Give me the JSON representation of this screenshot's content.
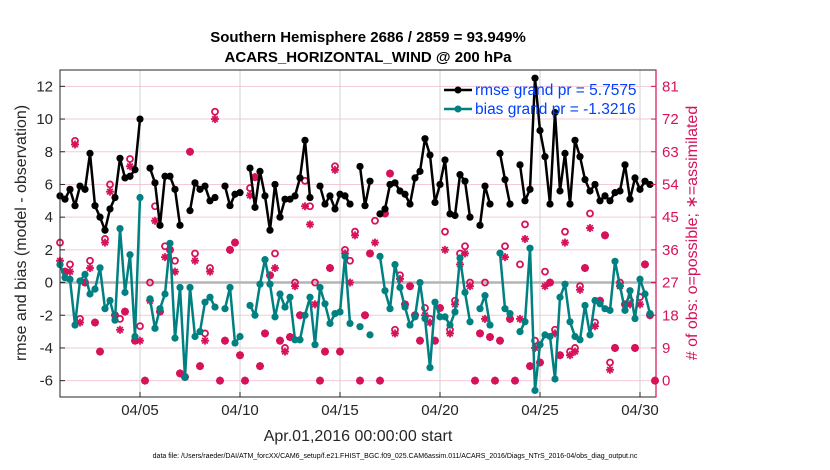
{
  "chart_data": {
    "type": "line",
    "title": [
      "Southern Hemisphere 2686 / 2859 = 93.949%",
      "ACARS_HORIZONTAL_WIND @ 200 hPa"
    ],
    "xlabel": "Apr.01,2016 00:00:00 start",
    "ylabel": "rmse and bias (model - observation)",
    "ylabel_right": "# of obs: o=possible; ∗=assimilated",
    "footer": "data file: /Users/raeder/DAI/ATM_forcXX/CAM6_setup/f.e21.FHIST_BGC.f09_025.CAM6assim.011/ACARS_2016/Diags_NTrS_2016-04/obs_diag_output.nc",
    "x_start": "2016-04-01 00:00",
    "x_step_hours": 6,
    "xlim_days": [
      0,
      29.8
    ],
    "x_ticks": [
      {
        "day": 4,
        "label": "04/05"
      },
      {
        "day": 9,
        "label": "04/10"
      },
      {
        "day": 14,
        "label": "04/15"
      },
      {
        "day": 19,
        "label": "04/20"
      },
      {
        "day": 24,
        "label": "04/25"
      },
      {
        "day": 29,
        "label": "04/30"
      }
    ],
    "ylim": [
      -7,
      13
    ],
    "y_ticks": [
      12,
      10,
      8,
      6,
      4,
      2,
      0,
      -2,
      -4,
      -6
    ],
    "ylim_right": [
      -4.5,
      85.5
    ],
    "y_ticks_right": [
      81,
      72,
      63,
      54,
      45,
      36,
      27,
      18,
      9,
      0
    ],
    "grid": true,
    "legend_placement": "top-right",
    "colors": {
      "rmse": "#000000",
      "bias": "#008080",
      "obs": "#d6125a",
      "grid_h": "#f5c9d8",
      "grid_v": "#d0d0d0",
      "zero": "#b4b4b4",
      "legend_text": "#0040ff"
    },
    "series": [
      {
        "name": "rmse grand pr = 5.7575",
        "axis": "left",
        "values": [
          5.3,
          5.1,
          5.7,
          4.7,
          5.9,
          5.7,
          7.9,
          4.7,
          4.0,
          3.2,
          4.5,
          5.2,
          7.6,
          6.4,
          6.5,
          6.9,
          10.0,
          null,
          7.0,
          6.1,
          3.5,
          6.5,
          6.5,
          5.7,
          3.5,
          null,
          4.4,
          6.1,
          5.7,
          5.9,
          5.0,
          5.2,
          null,
          5.9,
          4.7,
          5.4,
          5.5,
          null,
          7.0,
          4.6,
          6.8,
          5.3,
          3.2,
          6.0,
          4.0,
          5.1,
          5.1,
          5.3,
          6.4,
          8.7,
          5.2,
          null,
          5.9,
          4.8,
          5.3,
          4.5,
          5.4,
          5.3,
          4.8,
          null,
          7.1,
          4.7,
          6.2,
          null,
          4.2,
          4.5,
          6.0,
          6.1,
          5.6,
          5.4,
          4.8,
          6.4,
          6.8,
          8.8,
          7.8,
          4.9,
          6.0,
          7.5,
          4.2,
          4.1,
          6.6,
          6.2,
          4.0,
          null,
          3.5,
          5.9,
          4.8,
          null,
          7.9,
          6.3,
          4.8,
          null,
          7.2,
          5.0,
          5.7,
          12.5,
          9.3,
          7.7,
          4.8,
          10.4,
          5.6,
          7.9,
          4.8,
          8.7,
          7.7,
          6.3,
          5.6,
          6.0,
          5.0,
          5.3,
          5.0,
          5.5,
          5.6,
          7.2,
          5.1,
          6.4,
          5.7,
          6.2,
          6.0,
          null
        ]
      },
      {
        "name": "bias grand pr = -1.3216",
        "axis": "left",
        "values": [
          1.1,
          0.3,
          0.2,
          -2.6,
          0.1,
          0.5,
          -0.7,
          -0.4,
          0.9,
          -1.6,
          -1.1,
          -2.3,
          3.3,
          -0.6,
          1.7,
          -3.3,
          5.2,
          null,
          -1.0,
          -2.8,
          -1.6,
          -0.7,
          2.4,
          -3.4,
          -0.3,
          -5.8,
          -0.3,
          -3.3,
          -3.0,
          -1.2,
          -0.9,
          -1.5,
          null,
          -1.6,
          -0.3,
          -3.7,
          -3.3,
          null,
          -1.4,
          -2.0,
          -0.1,
          1.4,
          -0.1,
          -2.1,
          -0.7,
          -1.5,
          -0.9,
          -3.5,
          -3.5,
          -2.0,
          -0.9,
          -3.8,
          -0.3,
          -1.3,
          -2.5,
          -1.9,
          -1.8,
          1.6,
          -2.5,
          null,
          -2.7,
          null,
          -3.2,
          null,
          1.6,
          -0.5,
          -1.6,
          1.1,
          -0.3,
          -1.5,
          -2.6,
          -2.1,
          0.0,
          -2.2,
          -5.2,
          -1.2,
          -2.1,
          -2.1,
          -2.6,
          -1.8,
          1.5,
          -0.6,
          -2.4,
          null,
          -1.6,
          -0.8,
          -2.6,
          null,
          1.8,
          -1.6,
          -1.9,
          null,
          -3.0,
          -2.4,
          2.1,
          -6.6,
          -3.8,
          -3.2,
          -3.3,
          -5.9,
          -0.9,
          -0.1,
          -2.4,
          -3.3,
          -3.5,
          -1.4,
          -3.2,
          -1.1,
          -1.3,
          -1.6,
          -1.7,
          1.3,
          -0.2,
          -1.7,
          -0.5,
          -2.2,
          0.2,
          -0.7,
          -1.9,
          null
        ]
      },
      {
        "name": "possible",
        "axis": "right",
        "marker": "circle",
        "values": [
          38,
          30,
          32,
          66,
          17,
          27,
          33,
          16,
          8,
          39,
          54,
          18,
          17,
          19,
          61,
          11,
          15,
          0,
          27,
          48,
          19,
          37,
          36,
          33,
          2,
          1,
          63,
          35,
          4,
          13,
          31,
          74,
          0,
          11,
          36,
          38,
          7,
          0,
          53,
          56,
          4,
          13,
          29,
          35,
          11,
          9,
          12,
          27,
          18,
          55,
          48,
          27,
          0,
          8,
          31,
          59,
          8,
          36,
          33,
          41,
          0,
          18,
          35,
          44,
          0,
          46,
          57,
          14,
          29,
          21,
          26,
          18,
          11,
          20,
          17,
          11,
          20,
          41,
          14,
          22,
          35,
          37,
          27,
          0,
          13,
          27,
          12,
          0,
          11,
          37,
          17,
          0,
          32,
          43,
          4,
          11,
          5,
          30,
          27,
          14,
          7,
          41,
          8,
          9,
          26,
          31,
          46,
          16,
          22,
          40,
          5,
          9,
          27,
          21,
          22,
          9,
          23,
          32,
          18,
          0
        ]
      },
      {
        "name": "assimilated",
        "axis": "right",
        "marker": "asterisk",
        "values": [
          33,
          30,
          30,
          65,
          16,
          27,
          31,
          16,
          8,
          38,
          52,
          18,
          14,
          19,
          59,
          11,
          11,
          0,
          22,
          44,
          19,
          34,
          36,
          30,
          2,
          1,
          63,
          33,
          4,
          11,
          30,
          72,
          0,
          11,
          36,
          38,
          7,
          0,
          51,
          56,
          4,
          13,
          29,
          31,
          11,
          8,
          12,
          26,
          18,
          48,
          43,
          21,
          0,
          8,
          31,
          58,
          8,
          35,
          27,
          40,
          0,
          18,
          35,
          38,
          0,
          46,
          57,
          13,
          28,
          21,
          26,
          18,
          11,
          18,
          16,
          11,
          20,
          36,
          13,
          21,
          32,
          35,
          26,
          0,
          13,
          17,
          12,
          0,
          11,
          34,
          17,
          0,
          17,
          39,
          4,
          9,
          5,
          26,
          27,
          13,
          7,
          38,
          7,
          8,
          25,
          31,
          42,
          15,
          22,
          40,
          3,
          9,
          26,
          21,
          21,
          9,
          21,
          32,
          18,
          0
        ]
      }
    ]
  }
}
